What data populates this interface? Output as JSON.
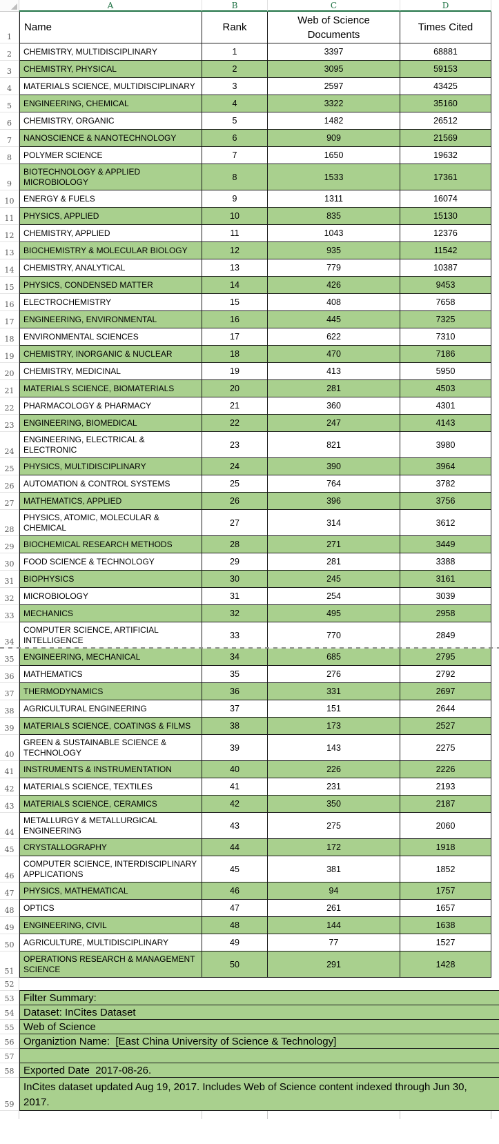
{
  "sheet": {
    "column_letters": [
      "A",
      "B",
      "C",
      "D"
    ],
    "header_row": {
      "row_number": "1",
      "name": "Name",
      "rank": "Rank",
      "docs": "Web of Science Documents",
      "cited": "Times Cited"
    },
    "rows": [
      {
        "row": "2",
        "name": "CHEMISTRY, MULTIDISCIPLINARY",
        "rank": "1",
        "docs": "3397",
        "cited": "68881"
      },
      {
        "row": "3",
        "name": "CHEMISTRY, PHYSICAL",
        "rank": "2",
        "docs": "3095",
        "cited": "59153"
      },
      {
        "row": "4",
        "name": "MATERIALS SCIENCE, MULTIDISCIPLINARY",
        "rank": "3",
        "docs": "2597",
        "cited": "43425"
      },
      {
        "row": "5",
        "name": "ENGINEERING, CHEMICAL",
        "rank": "4",
        "docs": "3322",
        "cited": "35160"
      },
      {
        "row": "6",
        "name": "CHEMISTRY, ORGANIC",
        "rank": "5",
        "docs": "1482",
        "cited": "26512"
      },
      {
        "row": "7",
        "name": "NANOSCIENCE & NANOTECHNOLOGY",
        "rank": "6",
        "docs": "909",
        "cited": "21569"
      },
      {
        "row": "8",
        "name": "POLYMER SCIENCE",
        "rank": "7",
        "docs": "1650",
        "cited": "19632"
      },
      {
        "row": "9",
        "name": "BIOTECHNOLOGY & APPLIED MICROBIOLOGY",
        "rank": "8",
        "docs": "1533",
        "cited": "17361"
      },
      {
        "row": "10",
        "name": "ENERGY & FUELS",
        "rank": "9",
        "docs": "1311",
        "cited": "16074"
      },
      {
        "row": "11",
        "name": "PHYSICS, APPLIED",
        "rank": "10",
        "docs": "835",
        "cited": "15130"
      },
      {
        "row": "12",
        "name": "CHEMISTRY, APPLIED",
        "rank": "11",
        "docs": "1043",
        "cited": "12376"
      },
      {
        "row": "13",
        "name": "BIOCHEMISTRY & MOLECULAR BIOLOGY",
        "rank": "12",
        "docs": "935",
        "cited": "11542"
      },
      {
        "row": "14",
        "name": "CHEMISTRY, ANALYTICAL",
        "rank": "13",
        "docs": "779",
        "cited": "10387"
      },
      {
        "row": "15",
        "name": "PHYSICS, CONDENSED MATTER",
        "rank": "14",
        "docs": "426",
        "cited": "9453"
      },
      {
        "row": "16",
        "name": "ELECTROCHEMISTRY",
        "rank": "15",
        "docs": "408",
        "cited": "7658"
      },
      {
        "row": "17",
        "name": "ENGINEERING, ENVIRONMENTAL",
        "rank": "16",
        "docs": "445",
        "cited": "7325"
      },
      {
        "row": "18",
        "name": "ENVIRONMENTAL SCIENCES",
        "rank": "17",
        "docs": "622",
        "cited": "7310"
      },
      {
        "row": "19",
        "name": "CHEMISTRY, INORGANIC & NUCLEAR",
        "rank": "18",
        "docs": "470",
        "cited": "7186"
      },
      {
        "row": "20",
        "name": "CHEMISTRY, MEDICINAL",
        "rank": "19",
        "docs": "413",
        "cited": "5950"
      },
      {
        "row": "21",
        "name": "MATERIALS SCIENCE, BIOMATERIALS",
        "rank": "20",
        "docs": "281",
        "cited": "4503"
      },
      {
        "row": "22",
        "name": "PHARMACOLOGY & PHARMACY",
        "rank": "21",
        "docs": "360",
        "cited": "4301"
      },
      {
        "row": "23",
        "name": "ENGINEERING, BIOMEDICAL",
        "rank": "22",
        "docs": "247",
        "cited": "4143"
      },
      {
        "row": "24",
        "name": "ENGINEERING, ELECTRICAL & ELECTRONIC",
        "rank": "23",
        "docs": "821",
        "cited": "3980"
      },
      {
        "row": "25",
        "name": "PHYSICS, MULTIDISCIPLINARY",
        "rank": "24",
        "docs": "390",
        "cited": "3964"
      },
      {
        "row": "26",
        "name": "AUTOMATION & CONTROL SYSTEMS",
        "rank": "25",
        "docs": "764",
        "cited": "3782"
      },
      {
        "row": "27",
        "name": "MATHEMATICS, APPLIED",
        "rank": "26",
        "docs": "396",
        "cited": "3756"
      },
      {
        "row": "28",
        "name": "PHYSICS, ATOMIC, MOLECULAR & CHEMICAL",
        "rank": "27",
        "docs": "314",
        "cited": "3612"
      },
      {
        "row": "29",
        "name": "BIOCHEMICAL RESEARCH METHODS",
        "rank": "28",
        "docs": "271",
        "cited": "3449"
      },
      {
        "row": "30",
        "name": "FOOD SCIENCE & TECHNOLOGY",
        "rank": "29",
        "docs": "281",
        "cited": "3388"
      },
      {
        "row": "31",
        "name": "BIOPHYSICS",
        "rank": "30",
        "docs": "245",
        "cited": "3161"
      },
      {
        "row": "32",
        "name": "MICROBIOLOGY",
        "rank": "31",
        "docs": "254",
        "cited": "3039"
      },
      {
        "row": "33",
        "name": "MECHANICS",
        "rank": "32",
        "docs": "495",
        "cited": "2958"
      },
      {
        "row": "34",
        "name": "COMPUTER SCIENCE, ARTIFICIAL INTELLIGENCE",
        "rank": "33",
        "docs": "770",
        "cited": "2849"
      },
      {
        "row": "35",
        "name": "ENGINEERING, MECHANICAL",
        "rank": "34",
        "docs": "685",
        "cited": "2795"
      },
      {
        "row": "36",
        "name": "MATHEMATICS",
        "rank": "35",
        "docs": "276",
        "cited": "2792"
      },
      {
        "row": "37",
        "name": "THERMODYNAMICS",
        "rank": "36",
        "docs": "331",
        "cited": "2697"
      },
      {
        "row": "38",
        "name": "AGRICULTURAL ENGINEERING",
        "rank": "37",
        "docs": "151",
        "cited": "2644"
      },
      {
        "row": "39",
        "name": "MATERIALS SCIENCE, COATINGS & FILMS",
        "rank": "38",
        "docs": "173",
        "cited": "2527"
      },
      {
        "row": "40",
        "name": "GREEN & SUSTAINABLE SCIENCE & TECHNOLOGY",
        "rank": "39",
        "docs": "143",
        "cited": "2275"
      },
      {
        "row": "41",
        "name": "INSTRUMENTS & INSTRUMENTATION",
        "rank": "40",
        "docs": "226",
        "cited": "2226"
      },
      {
        "row": "42",
        "name": "MATERIALS SCIENCE, TEXTILES",
        "rank": "41",
        "docs": "231",
        "cited": "2193"
      },
      {
        "row": "43",
        "name": "MATERIALS SCIENCE, CERAMICS",
        "rank": "42",
        "docs": "350",
        "cited": "2187"
      },
      {
        "row": "44",
        "name": "METALLURGY & METALLURGICAL ENGINEERING",
        "rank": "43",
        "docs": "275",
        "cited": "2060"
      },
      {
        "row": "45",
        "name": "CRYSTALLOGRAPHY",
        "rank": "44",
        "docs": "172",
        "cited": "1918"
      },
      {
        "row": "46",
        "name": "COMPUTER SCIENCE, INTERDISCIPLINARY APPLICATIONS",
        "rank": "45",
        "docs": "381",
        "cited": "1852"
      },
      {
        "row": "47",
        "name": "PHYSICS, MATHEMATICAL",
        "rank": "46",
        "docs": "94",
        "cited": "1757"
      },
      {
        "row": "48",
        "name": "OPTICS",
        "rank": "47",
        "docs": "261",
        "cited": "1657"
      },
      {
        "row": "49",
        "name": "ENGINEERING, CIVIL",
        "rank": "48",
        "docs": "144",
        "cited": "1638"
      },
      {
        "row": "50",
        "name": "AGRICULTURE, MULTIDISCIPLINARY",
        "rank": "49",
        "docs": "77",
        "cited": "1527"
      },
      {
        "row": "51",
        "name": "OPERATIONS RESEARCH & MANAGEMENT SCIENCE",
        "rank": "50",
        "docs": "291",
        "cited": "1428"
      }
    ],
    "page_break_after_row": "34",
    "footer_rows": [
      {
        "row": "52",
        "text": "",
        "green": false,
        "tall": false
      },
      {
        "row": "53",
        "text": "Filter Summary:",
        "green": true,
        "tall": false
      },
      {
        "row": "54",
        "text": "Dataset: InCites Dataset",
        "green": true,
        "tall": false
      },
      {
        "row": "55",
        "text": "Web of Science",
        "green": true,
        "tall": false
      },
      {
        "row": "56",
        "text": "Organiztion Name:  [East China University of Science & Technology]",
        "green": true,
        "tall": false
      },
      {
        "row": "57",
        "text": "",
        "green": true,
        "tall": false
      },
      {
        "row": "58",
        "text": "Exported Date  2017-08-26.",
        "green": true,
        "tall": false
      },
      {
        "row": "59",
        "text": "InCites dataset updated Aug 19, 2017. Includes Web of Science content indexed through Jun 30, 2017.",
        "green": true,
        "tall": true
      }
    ],
    "colors": {
      "row_highlight_green": "#a9d08e",
      "accent_green": "#217346"
    }
  }
}
